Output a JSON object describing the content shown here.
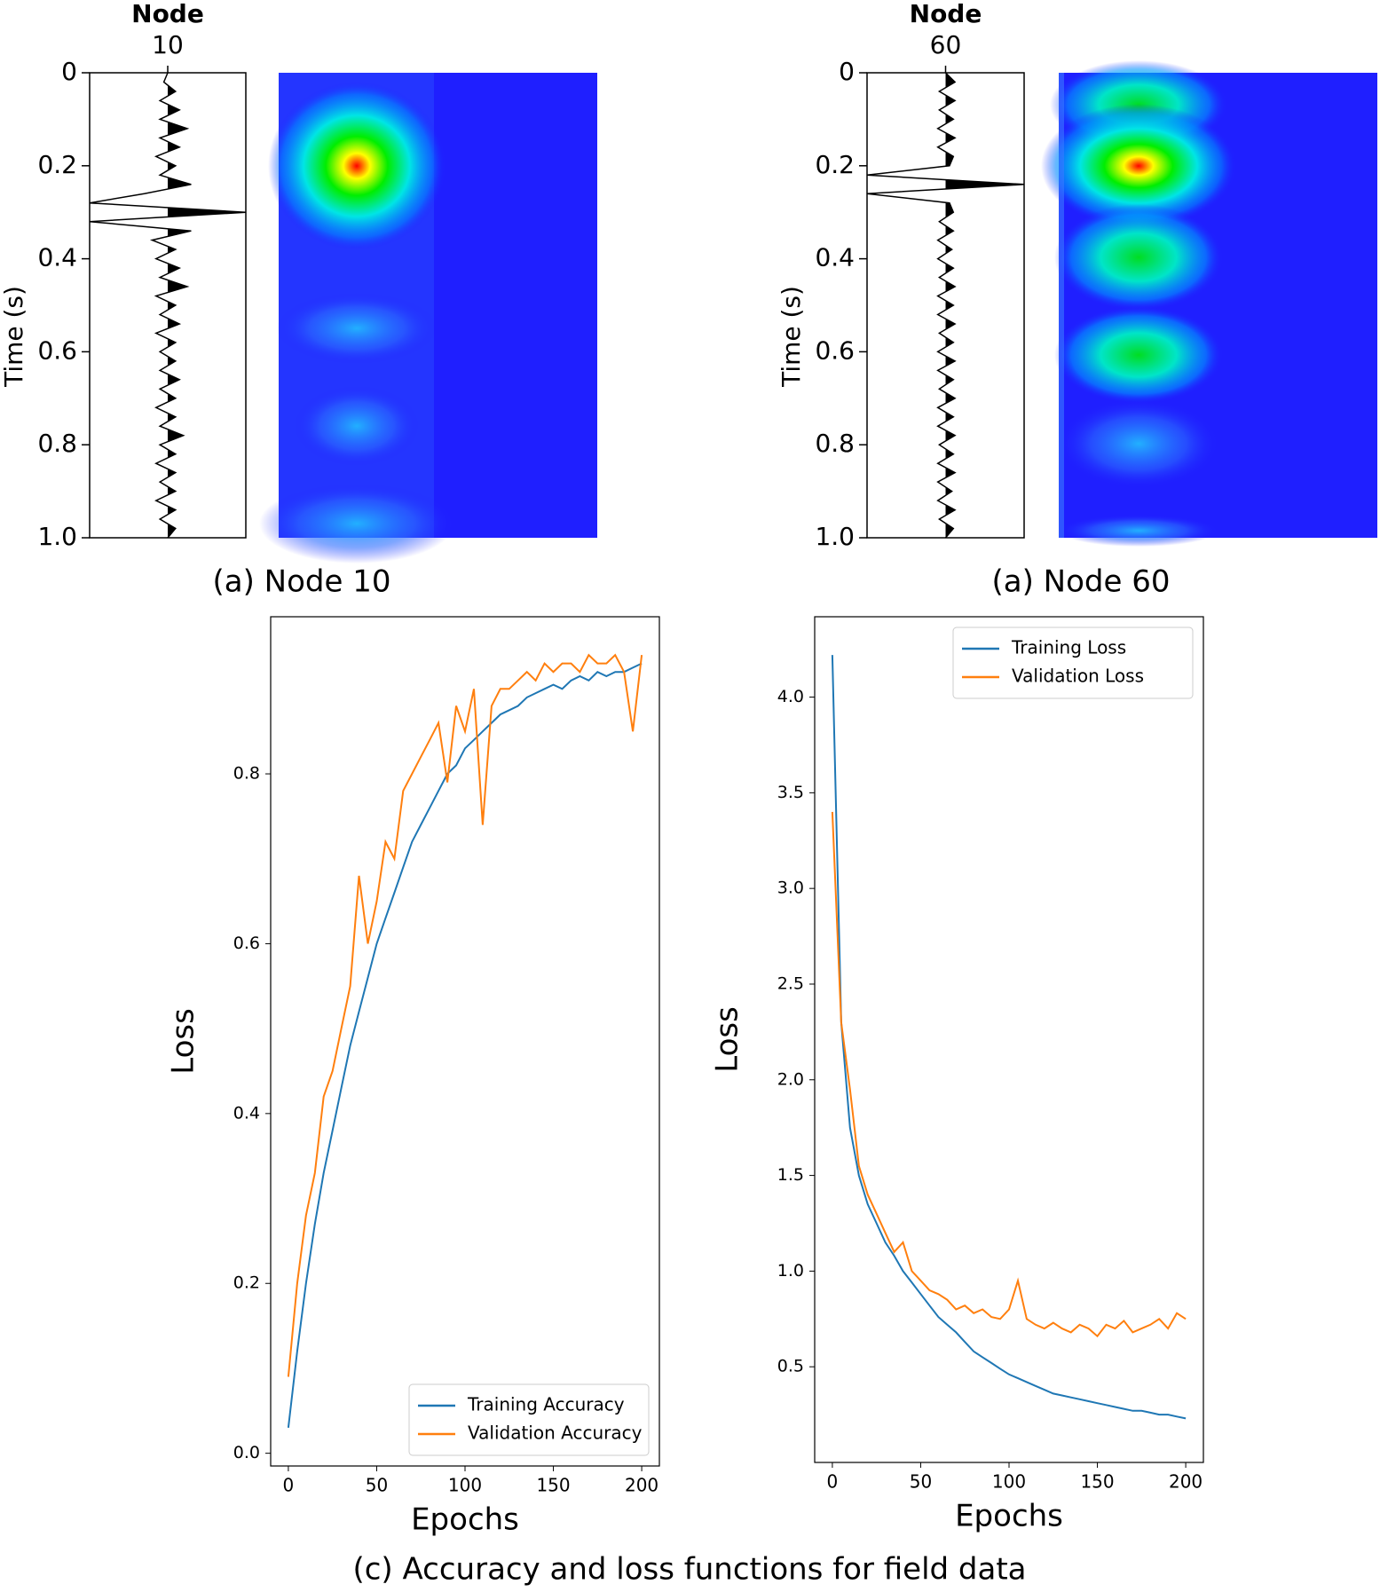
{
  "chart_data": [
    {
      "type": "wiggle",
      "title": "Node",
      "trace_label": "10",
      "caption": "(a) Node 10",
      "ylabel": "Time (s)",
      "x": [
        0,
        0.02,
        0.04,
        0.06,
        0.08,
        0.1,
        0.12,
        0.14,
        0.16,
        0.18,
        0.2,
        0.22,
        0.24,
        0.26,
        0.28,
        0.3,
        0.32,
        0.34,
        0.36,
        0.38,
        0.4,
        0.42,
        0.44,
        0.46,
        0.48,
        0.5,
        0.52,
        0.54,
        0.56,
        0.58,
        0.6,
        0.62,
        0.64,
        0.66,
        0.68,
        0.7,
        0.72,
        0.74,
        0.76,
        0.78,
        0.8,
        0.82,
        0.84,
        0.86,
        0.88,
        0.9,
        0.92,
        0.94,
        0.96,
        0.98,
        1
      ],
      "values": [
        0,
        -0.05,
        0.1,
        -0.1,
        0.15,
        -0.1,
        0.25,
        -0.1,
        0.15,
        -0.15,
        0.1,
        -0.1,
        0.3,
        -0.3,
        -1,
        1,
        -1,
        0.3,
        -0.2,
        0.1,
        -0.15,
        0.15,
        -0.1,
        0.25,
        -0.15,
        0.1,
        -0.1,
        0.15,
        -0.15,
        0.1,
        -0.1,
        0.1,
        -0.1,
        0.15,
        -0.1,
        0.1,
        -0.15,
        0.1,
        -0.1,
        0.2,
        -0.1,
        0.1,
        -0.15,
        0.1,
        -0.1,
        0.1,
        -0.15,
        0.1,
        -0.1,
        0.1,
        0
      ],
      "color": "#000000",
      "xlim": [
        -1,
        1
      ],
      "ylim": [
        0,
        1
      ],
      "yticks": [
        0,
        0.2,
        0.4,
        0.6,
        0.8,
        {
          "value": 1,
          "label": "1.0"
        }
      ]
    },
    {
      "type": "wiggle",
      "title": "Node",
      "trace_label": "60",
      "caption": "(a) Node 60",
      "ylabel": "Time (s)",
      "x": [
        0,
        0.02,
        0.04,
        0.06,
        0.08,
        0.1,
        0.12,
        0.14,
        0.16,
        0.18,
        0.2,
        0.22,
        0.24,
        0.26,
        0.28,
        0.3,
        0.32,
        0.34,
        0.36,
        0.38,
        0.4,
        0.42,
        0.44,
        0.46,
        0.48,
        0.5,
        0.52,
        0.54,
        0.56,
        0.58,
        0.6,
        0.62,
        0.64,
        0.66,
        0.68,
        0.7,
        0.72,
        0.74,
        0.76,
        0.78,
        0.8,
        0.82,
        0.84,
        0.86,
        0.88,
        0.9,
        0.92,
        0.94,
        0.96,
        0.98,
        1
      ],
      "values": [
        0,
        0.12,
        -0.08,
        0.12,
        -0.08,
        0.1,
        -0.1,
        0.12,
        -0.1,
        0.1,
        0.05,
        -1,
        1,
        -1,
        0.05,
        0.1,
        -0.08,
        0.1,
        -0.1,
        0.08,
        -0.1,
        0.1,
        -0.08,
        0.12,
        -0.1,
        0.1,
        -0.1,
        0.12,
        -0.08,
        0.1,
        -0.1,
        0.12,
        -0.1,
        0.1,
        -0.08,
        0.12,
        -0.1,
        0.1,
        -0.1,
        0.12,
        -0.08,
        0.1,
        -0.1,
        0.12,
        -0.1,
        0.08,
        -0.1,
        0.12,
        -0.08,
        0.1,
        0
      ],
      "color": "#000000",
      "xlim": [
        -1,
        1
      ],
      "ylim": [
        0,
        1
      ],
      "yticks": [
        0,
        0.2,
        0.4,
        0.6,
        0.8,
        {
          "value": 1,
          "label": "1.0"
        }
      ]
    },
    {
      "type": "line",
      "xlabel": "Epochs",
      "ylabel": "Loss",
      "legend": "lower right",
      "x": [
        0,
        5,
        10,
        15,
        20,
        25,
        30,
        35,
        40,
        45,
        50,
        55,
        60,
        65,
        70,
        75,
        80,
        85,
        90,
        95,
        100,
        105,
        110,
        115,
        120,
        125,
        130,
        135,
        140,
        145,
        150,
        155,
        160,
        165,
        170,
        175,
        180,
        185,
        190,
        195,
        200
      ],
      "series": [
        {
          "name": "Training Accuracy",
          "color": "#1f77b4",
          "values": [
            0.03,
            0.12,
            0.2,
            0.27,
            0.33,
            0.38,
            0.43,
            0.48,
            0.52,
            0.56,
            0.6,
            0.63,
            0.66,
            0.69,
            0.72,
            0.74,
            0.76,
            0.78,
            0.8,
            0.81,
            0.83,
            0.84,
            0.85,
            0.86,
            0.87,
            0.875,
            0.88,
            0.89,
            0.895,
            0.9,
            0.905,
            0.9,
            0.91,
            0.915,
            0.91,
            0.92,
            0.915,
            0.92,
            0.92,
            0.925,
            0.93
          ]
        },
        {
          "name": "Validation Accuracy",
          "color": "#ff7f0e",
          "values": [
            0.09,
            0.2,
            0.28,
            0.33,
            0.42,
            0.45,
            0.5,
            0.55,
            0.68,
            0.6,
            0.65,
            0.72,
            0.7,
            0.78,
            0.8,
            0.82,
            0.84,
            0.86,
            0.79,
            0.88,
            0.85,
            0.9,
            0.74,
            0.88,
            0.9,
            0.9,
            0.91,
            0.92,
            0.91,
            0.93,
            0.92,
            0.93,
            0.93,
            0.92,
            0.94,
            0.93,
            0.93,
            0.94,
            0.92,
            0.85,
            0.94
          ]
        }
      ],
      "xlim": [
        -10,
        210
      ],
      "ylim": [
        -0.015,
        0.985
      ],
      "xticks": [
        0,
        50,
        100,
        150,
        200
      ],
      "yticks": [
        {
          "value": 0,
          "label": "0.0"
        },
        0.2,
        0.4,
        0.6,
        0.8
      ]
    },
    {
      "type": "line",
      "xlabel": "Epochs",
      "ylabel": "Loss",
      "legend": "upper right",
      "x": [
        0,
        5,
        10,
        15,
        20,
        25,
        30,
        35,
        40,
        45,
        50,
        55,
        60,
        65,
        70,
        75,
        80,
        85,
        90,
        95,
        100,
        105,
        110,
        115,
        120,
        125,
        130,
        135,
        140,
        145,
        150,
        155,
        160,
        165,
        170,
        175,
        180,
        185,
        190,
        195,
        200
      ],
      "series": [
        {
          "name": "Training Loss",
          "color": "#1f77b4",
          "values": [
            4.22,
            2.3,
            1.75,
            1.5,
            1.35,
            1.25,
            1.15,
            1.08,
            1.0,
            0.94,
            0.88,
            0.82,
            0.76,
            0.72,
            0.68,
            0.63,
            0.58,
            0.55,
            0.52,
            0.49,
            0.46,
            0.44,
            0.42,
            0.4,
            0.38,
            0.36,
            0.35,
            0.34,
            0.33,
            0.32,
            0.31,
            0.3,
            0.29,
            0.28,
            0.27,
            0.27,
            0.26,
            0.25,
            0.25,
            0.24,
            0.23
          ]
        },
        {
          "name": "Validation Loss",
          "color": "#ff7f0e",
          "values": [
            3.4,
            2.3,
            1.95,
            1.55,
            1.4,
            1.3,
            1.2,
            1.1,
            1.15,
            1.0,
            0.95,
            0.9,
            0.88,
            0.85,
            0.8,
            0.82,
            0.78,
            0.8,
            0.76,
            0.75,
            0.8,
            0.95,
            0.75,
            0.72,
            0.7,
            0.73,
            0.7,
            0.68,
            0.72,
            0.7,
            0.66,
            0.72,
            0.7,
            0.74,
            0.68,
            0.7,
            0.72,
            0.75,
            0.7,
            0.78,
            0.75
          ]
        }
      ],
      "xlim": [
        -10,
        210
      ],
      "ylim": [
        0,
        4.42
      ],
      "xticks": [
        0,
        50,
        100,
        150,
        200
      ],
      "yticks": [
        0.5,
        {
          "value": 1,
          "label": "1.0"
        },
        1.5,
        {
          "value": 2,
          "label": "2.0"
        },
        2.5,
        {
          "value": 3,
          "label": "3.0"
        },
        3.5,
        {
          "value": 4,
          "label": "4.0"
        }
      ]
    }
  ],
  "caption": "(c) Accuracy and loss functions for field data"
}
